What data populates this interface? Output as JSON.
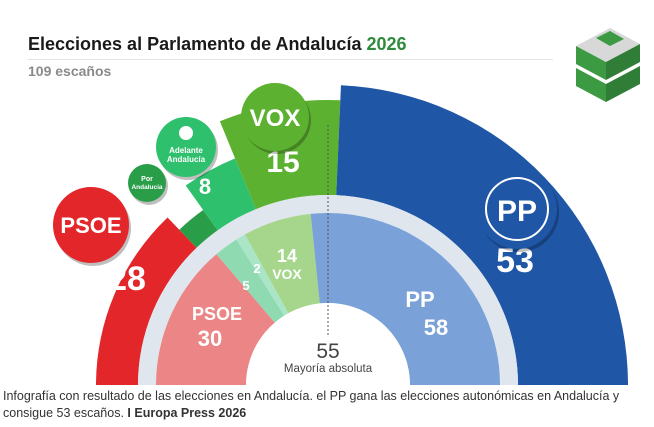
{
  "header": {
    "title": "Elecciones al Parlamento de Andalucía",
    "title_year": "2026",
    "subtitle": "109 escaños"
  },
  "caption": {
    "text": "Infografía con resultado de las elecciones en Andalucía. el PP gana las elecciones autonómicas en Andalucía y consigue 53 escaños.",
    "source": "I Europa Press 2026"
  },
  "chart_data": {
    "type": "pie",
    "title": "Elecciones al Parlamento de Andalucía 2026",
    "subtitle": "109 escaños",
    "total_seats": 109,
    "majority": {
      "value": 55,
      "label": "Mayoría absoluta"
    },
    "series": [
      {
        "name": "2026",
        "slices": [
          {
            "party": "PSOE",
            "seats": 28,
            "color": "#e3262a"
          },
          {
            "party": "Por Andalucía",
            "seats": 5,
            "color": "#2a9d49"
          },
          {
            "party": "Adelante Andalucía",
            "seats": 8,
            "color": "#2ec06c"
          },
          {
            "party": "VOX",
            "seats": 15,
            "color": "#5cb130"
          },
          {
            "party": "PP",
            "seats": 53,
            "color": "#1f56a6"
          }
        ]
      },
      {
        "name": "previous",
        "slices": [
          {
            "party": "PSOE",
            "seats": 30,
            "color": "#ec8585"
          },
          {
            "party": "Por Andalucía",
            "seats": 5,
            "color": "#8fdab1"
          },
          {
            "party": "Adelante Andalucía",
            "seats": 2,
            "color": "#a9e5c6"
          },
          {
            "party": "VOX",
            "seats": 14,
            "color": "#a6d68c"
          },
          {
            "party": "PP",
            "seats": 58,
            "color": "#7aa1d8"
          }
        ]
      }
    ],
    "badge_labels": {
      "PSOE": "PSOE",
      "VOX": "VOX",
      "PP": "PP",
      "Adelante": "Adelante",
      "Andalucia": "Andalucía",
      "Por": "Por"
    }
  }
}
